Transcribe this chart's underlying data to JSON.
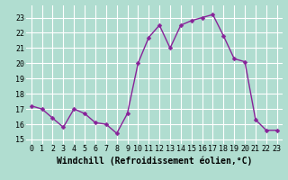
{
  "x": [
    0,
    1,
    2,
    3,
    4,
    5,
    6,
    7,
    8,
    9,
    10,
    11,
    12,
    13,
    14,
    15,
    16,
    17,
    18,
    19,
    20,
    21,
    22,
    23
  ],
  "y": [
    17.2,
    17.0,
    16.4,
    15.8,
    17.0,
    16.7,
    16.1,
    16.0,
    15.4,
    16.7,
    20.0,
    21.7,
    22.5,
    21.0,
    22.5,
    22.8,
    23.0,
    23.2,
    21.8,
    20.3,
    20.1,
    16.3,
    15.6,
    15.6
  ],
  "line_color": "#882299",
  "marker": "D",
  "marker_size": 2.5,
  "linewidth": 1.0,
  "xlabel": "Windchill (Refroidissement éolien,°C)",
  "xlabel_fontsize": 7,
  "ylabel_ticks": [
    15,
    16,
    17,
    18,
    19,
    20,
    21,
    22,
    23
  ],
  "xtick_labels": [
    "0",
    "1",
    "2",
    "3",
    "4",
    "5",
    "6",
    "7",
    "8",
    "9",
    "10",
    "11",
    "12",
    "13",
    "14",
    "15",
    "16",
    "17",
    "18",
    "19",
    "20",
    "21",
    "22",
    "23"
  ],
  "ylim": [
    14.7,
    23.8
  ],
  "xlim": [
    -0.5,
    23.5
  ],
  "bg_color": "#b0ddd0",
  "grid_color": "#ffffff",
  "tick_fontsize": 6
}
